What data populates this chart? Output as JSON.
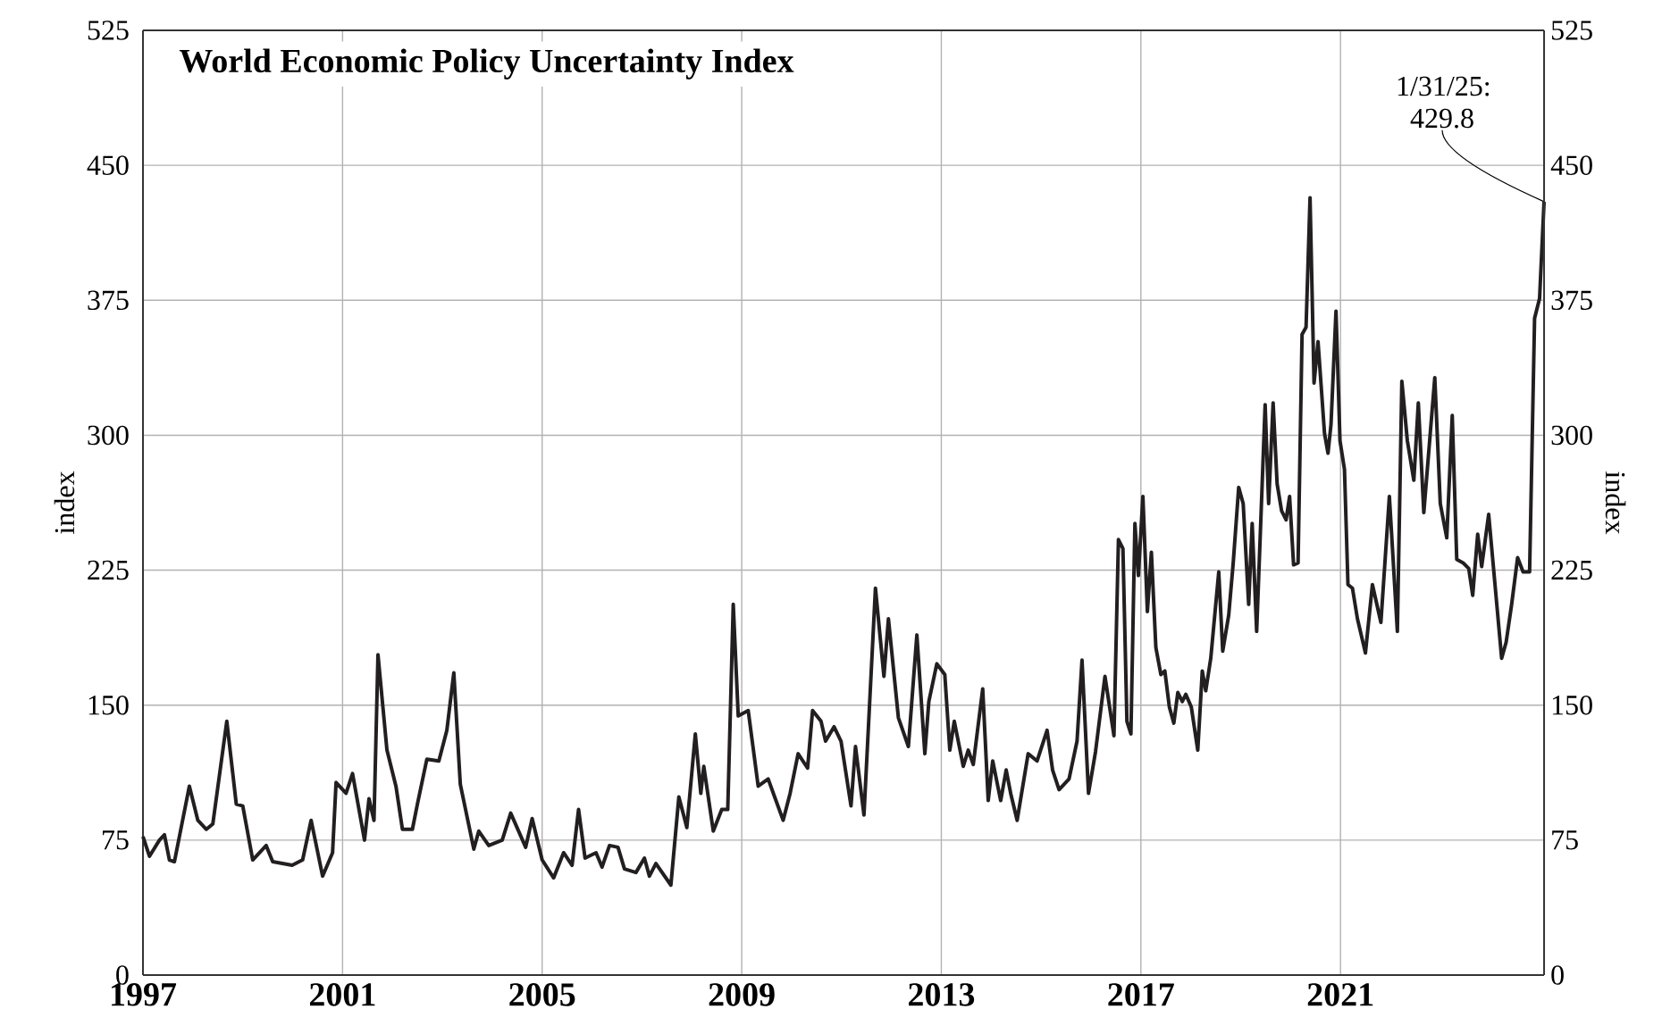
{
  "chart_data": {
    "type": "line",
    "title": "World Economic Policy Uncertainty Index",
    "ylabel": "index",
    "y2label": "index",
    "xlim": [
      1997,
      2025.08
    ],
    "xticks": [
      1997,
      2001,
      2005,
      2009,
      2013,
      2017,
      2021
    ],
    "ylim": [
      0,
      525
    ],
    "yticks": [
      0,
      75,
      150,
      225,
      300,
      375,
      450,
      525
    ],
    "y2lim": [
      0,
      525
    ],
    "y2ticks": [
      0,
      75,
      150,
      225,
      300,
      375,
      450,
      525
    ],
    "grid": true,
    "marker": "none",
    "line_style": "solid",
    "annotations": [
      {
        "text": "1/31/25: 429.8",
        "x": 2025.08,
        "y": 429.8
      }
    ],
    "series": [
      {
        "color": "#231f20",
        "x": [
          1997.0,
          1997.13,
          1997.33,
          1997.43,
          1997.53,
          1997.63,
          1997.93,
          1998.1,
          1998.27,
          1998.4,
          1998.68,
          1998.87,
          1999.0,
          1999.2,
          1999.47,
          1999.6,
          1999.99,
          2000.2,
          2000.37,
          2000.6,
          2000.8,
          2000.87,
          2001.07,
          2001.2,
          2001.44,
          2001.53,
          2001.63,
          2001.71,
          2001.89,
          2002.07,
          2002.2,
          2002.4,
          2002.5,
          2002.69,
          2002.93,
          2003.09,
          2003.23,
          2003.36,
          2003.63,
          2003.73,
          2003.93,
          2004.2,
          2004.37,
          2004.67,
          2004.8,
          2005.0,
          2005.23,
          2005.43,
          2005.6,
          2005.73,
          2005.86,
          2006.08,
          2006.2,
          2006.35,
          2006.52,
          2006.65,
          2006.88,
          2007.05,
          2007.15,
          2007.28,
          2007.58,
          2007.74,
          2007.9,
          2008.07,
          2008.18,
          2008.24,
          2008.43,
          2008.6,
          2008.72,
          2008.83,
          2008.93,
          2009.13,
          2009.33,
          2009.53,
          2009.66,
          2009.83,
          2009.97,
          2010.13,
          2010.32,
          2010.42,
          2010.59,
          2010.68,
          2010.85,
          2010.99,
          2011.19,
          2011.28,
          2011.45,
          2011.68,
          2011.85,
          2011.94,
          2012.14,
          2012.34,
          2012.51,
          2012.67,
          2012.75,
          2012.91,
          2013.07,
          2013.17,
          2013.26,
          2013.44,
          2013.54,
          2013.64,
          2013.83,
          2013.94,
          2014.03,
          2014.19,
          2014.3,
          2014.39,
          2014.52,
          2014.74,
          2014.92,
          2015.12,
          2015.23,
          2015.36,
          2015.56,
          2015.72,
          2015.82,
          2015.95,
          2016.09,
          2016.28,
          2016.46,
          2016.55,
          2016.64,
          2016.72,
          2016.8,
          2016.88,
          2016.95,
          2017.04,
          2017.13,
          2017.21,
          2017.3,
          2017.4,
          2017.48,
          2017.57,
          2017.66,
          2017.74,
          2017.83,
          2017.9,
          2018.01,
          2018.14,
          2018.23,
          2018.3,
          2018.4,
          2018.56,
          2018.64,
          2018.76,
          2018.85,
          2018.96,
          2019.05,
          2019.16,
          2019.23,
          2019.32,
          2019.49,
          2019.56,
          2019.65,
          2019.73,
          2019.82,
          2019.91,
          2019.98,
          2020.06,
          2020.15,
          2020.23,
          2020.31,
          2020.39,
          2020.47,
          2020.55,
          2020.68,
          2020.75,
          2020.81,
          2020.91,
          2020.99,
          2021.08,
          2021.15,
          2021.24,
          2021.34,
          2021.5,
          2021.64,
          2021.81,
          2021.98,
          2022.14,
          2022.23,
          2022.34,
          2022.47,
          2022.56,
          2022.67,
          2022.89,
          2023.0,
          2023.13,
          2023.24,
          2023.33,
          2023.46,
          2023.57,
          2023.65,
          2023.75,
          2023.83,
          2023.97,
          2024.23,
          2024.32,
          2024.43,
          2024.55,
          2024.66,
          2024.79,
          2024.89,
          2024.99,
          2025.08
        ],
        "values": [
          77,
          66,
          75,
          78,
          64,
          63,
          105,
          86,
          81,
          84,
          141,
          95,
          94,
          64,
          72,
          63,
          61,
          64,
          86,
          55,
          68,
          107,
          101,
          112,
          75,
          98,
          86,
          178,
          125,
          105,
          81,
          81,
          95,
          120,
          119,
          136,
          168,
          106,
          70,
          80,
          72,
          75,
          90,
          71,
          87,
          64,
          54,
          68,
          61,
          92,
          65,
          68,
          60,
          72,
          71,
          59,
          57,
          65,
          55,
          62,
          50,
          99,
          82,
          134,
          101,
          116,
          80,
          92,
          92,
          206,
          144,
          147,
          105,
          109,
          99,
          86,
          101,
          123,
          115,
          147,
          141,
          130,
          138,
          130,
          94,
          127,
          89,
          215,
          166,
          198,
          143,
          127,
          189,
          123,
          152,
          173,
          167,
          125,
          141,
          116,
          125,
          117,
          159,
          97,
          119,
          97,
          114,
          101,
          86,
          123,
          119,
          136,
          114,
          103,
          109,
          130,
          175,
          101,
          124,
          166,
          133,
          242,
          237,
          141,
          134,
          251,
          222,
          266,
          202,
          235,
          182,
          167,
          169,
          149,
          140,
          157,
          152,
          156,
          149,
          125,
          169,
          158,
          176,
          224,
          180,
          200,
          229,
          271,
          262,
          206,
          251,
          191,
          317,
          262,
          318,
          273,
          258,
          253,
          266,
          228,
          229,
          356,
          360,
          432,
          329,
          352,
          301,
          290,
          306,
          369,
          297,
          281,
          217,
          215,
          198,
          179,
          217,
          196,
          266,
          191,
          330,
          297,
          275,
          318,
          257,
          332,
          262,
          243,
          311,
          231,
          229,
          226,
          211,
          245,
          227,
          256,
          176,
          185,
          206,
          232,
          224,
          224,
          365,
          376,
          429.8
        ]
      }
    ]
  }
}
